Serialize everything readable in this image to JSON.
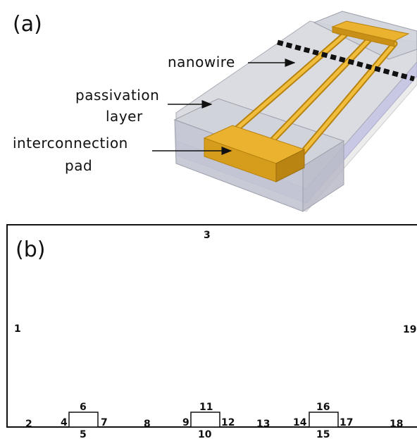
{
  "panel_a": {
    "label": "(a)",
    "callouts": {
      "nanowire": "nanowire",
      "passivation_line1": "passivation",
      "passivation_line2": "layer",
      "interconnection_line1": "interconnection",
      "interconnection_line2": "pad"
    },
    "colors": {
      "gold": "#e0a522",
      "gold_dark": "#b8820f",
      "passivation": "#c4c8d2",
      "substrate": "#c9c9e6",
      "base": "#e9e9e9"
    }
  },
  "panel_b": {
    "label": "(b)",
    "boundary_numbers": [
      "1",
      "2",
      "3",
      "4",
      "5",
      "6",
      "7",
      "8",
      "9",
      "10",
      "11",
      "12",
      "13",
      "14",
      "15",
      "16",
      "17",
      "18",
      "19"
    ]
  }
}
